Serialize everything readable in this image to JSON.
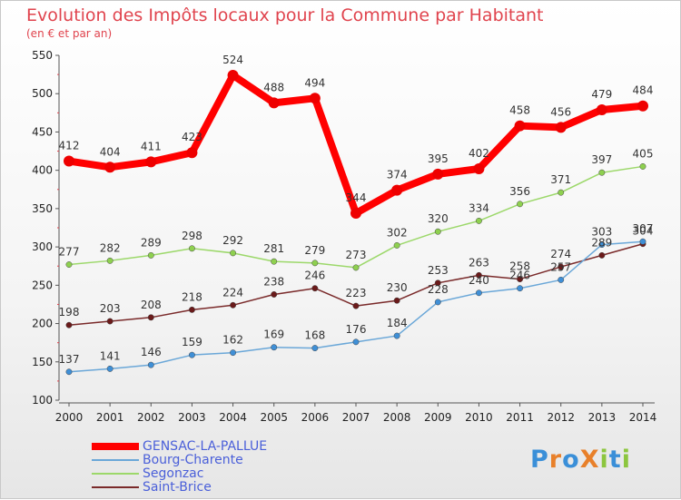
{
  "title": "Evolution des Impôts locaux pour la Commune par Habitant",
  "subtitle": "(en € et par an)",
  "logo": {
    "text": "Proxiti",
    "letters": [
      {
        "ch": "P",
        "color": "#3a8fd8"
      },
      {
        "ch": "r",
        "color": "#e8802a"
      },
      {
        "ch": "o",
        "color": "#3a8fd8"
      },
      {
        "ch": "X",
        "color": "#e8802a"
      },
      {
        "ch": "i",
        "color": "#8cc63e"
      },
      {
        "ch": "t",
        "color": "#3a8fd8"
      },
      {
        "ch": "i",
        "color": "#8cc63e"
      }
    ]
  },
  "chart_data": {
    "type": "line",
    "title": "Evolution des Impôts locaux pour la Commune par Habitant",
    "subtitle": "(en € et par an)",
    "x": [
      "2000",
      "2001",
      "2002",
      "2003",
      "2004",
      "2005",
      "2006",
      "2007",
      "2008",
      "2009",
      "2010",
      "2011",
      "2012",
      "2013",
      "2014"
    ],
    "ylim": [
      100,
      550
    ],
    "yticks": [
      100,
      150,
      200,
      250,
      300,
      350,
      400,
      450,
      500,
      550
    ],
    "grid": false,
    "legend_position": "bottom-left",
    "series": [
      {
        "name": "GENSAC-LA-PALLUE",
        "color": "#ff0000",
        "marker": "#ee0000",
        "width": 8,
        "values": [
          412,
          404,
          411,
          423,
          524,
          488,
          494,
          344,
          374,
          395,
          402,
          458,
          456,
          479,
          484
        ]
      },
      {
        "name": "Bourg-Charente",
        "color": "#6aa7d8",
        "marker": "#3f8fd6",
        "width": 1.5,
        "values": [
          137,
          141,
          146,
          159,
          162,
          169,
          168,
          176,
          184,
          228,
          240,
          246,
          257,
          303,
          307
        ]
      },
      {
        "name": "Segonzac",
        "color": "#9cd86a",
        "marker": "#8ed04f",
        "width": 1.5,
        "values": [
          277,
          282,
          289,
          298,
          292,
          281,
          279,
          273,
          302,
          320,
          334,
          356,
          371,
          397,
          405
        ]
      },
      {
        "name": "Saint-Brice",
        "color": "#7a2a2a",
        "marker": "#6a1a1a",
        "width": 1.5,
        "values": [
          198,
          203,
          208,
          218,
          224,
          238,
          246,
          223,
          230,
          253,
          263,
          258,
          274,
          289,
          304
        ]
      }
    ],
    "point_labels": [
      {
        "series": 0,
        "text": [
          "412",
          "404",
          "411",
          "423",
          "524",
          "488",
          "494",
          "344",
          "374",
          "395",
          "402",
          "458",
          "456",
          "479",
          "484"
        ]
      },
      {
        "series": 1,
        "text": [
          "137",
          "141",
          "146",
          "159",
          "162",
          "169",
          "168",
          "176",
          "184",
          "228",
          "240",
          "246",
          "257",
          "303",
          "307"
        ]
      },
      {
        "series": 2,
        "text": [
          "277",
          "282",
          "289",
          "298",
          "292",
          "281",
          "279",
          "273",
          "302",
          "320",
          "334",
          "356",
          "371",
          "397",
          "405"
        ]
      },
      {
        "series": 3,
        "text": [
          "198",
          "203",
          "208",
          "218",
          "224",
          "238",
          "246",
          "223",
          "230",
          "253",
          "263",
          "258",
          "274",
          "289",
          "304"
        ]
      }
    ]
  }
}
